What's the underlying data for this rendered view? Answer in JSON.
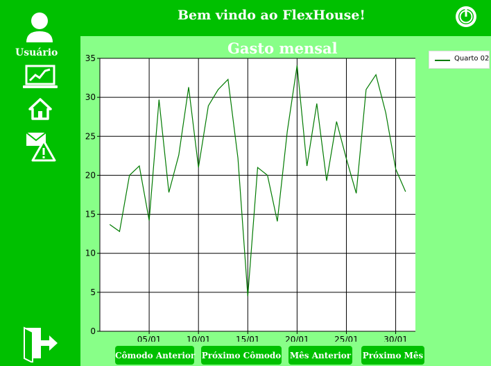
{
  "header": {
    "title": "Bem vindo ao FlexHouse!"
  },
  "sidebar": {
    "user_label": "Usuário"
  },
  "buttons": {
    "prev_room": "Cômodo Anterior",
    "next_room": "Próximo Cômodo",
    "prev_month": "Mês Anterior",
    "next_month": "Próximo Mês"
  },
  "colors": {
    "primary_green": "#00c000",
    "panel_green": "#88ff88",
    "series_line": "#007a00"
  },
  "chart_data": {
    "type": "line",
    "title": "Gasto mensal",
    "xlabel": "",
    "ylabel": "",
    "ylim": [
      0,
      35
    ],
    "xlim": [
      0,
      32
    ],
    "y_ticks": [
      0,
      5,
      10,
      15,
      20,
      25,
      30,
      35
    ],
    "x_tick_labels": [
      {
        "x": 5,
        "label": "05/01"
      },
      {
        "x": 10,
        "label": "10/01"
      },
      {
        "x": 15,
        "label": "15/01"
      },
      {
        "x": 20,
        "label": "20/01"
      },
      {
        "x": 25,
        "label": "25/01"
      },
      {
        "x": 30,
        "label": "30/01"
      }
    ],
    "grid": true,
    "legend_position": "top-right",
    "series": [
      {
        "name": "Quarto 02",
        "x": [
          1,
          2,
          3,
          4,
          5,
          6,
          7,
          8,
          9,
          10,
          11,
          12,
          13,
          14,
          15,
          16,
          17,
          18,
          19,
          20,
          21,
          22,
          23,
          24,
          25,
          26,
          27,
          28,
          29,
          30,
          31
        ],
        "values": [
          13.7,
          12.8,
          20.0,
          21.2,
          14.2,
          29.7,
          17.8,
          22.6,
          31.3,
          21.0,
          28.9,
          31.0,
          32.3,
          22.2,
          4.5,
          21.0,
          20.0,
          14.1,
          25.6,
          34.1,
          21.2,
          29.2,
          19.3,
          26.9,
          22.1,
          17.7,
          31.0,
          32.9,
          28.0,
          20.8,
          17.9
        ]
      }
    ]
  }
}
